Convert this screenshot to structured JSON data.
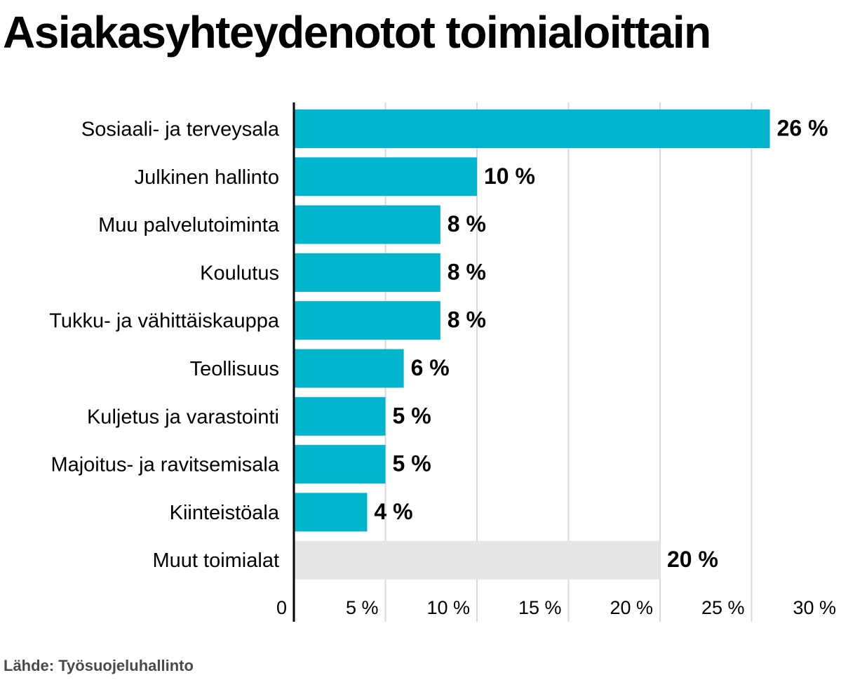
{
  "chart_data": {
    "type": "bar",
    "orientation": "horizontal",
    "title": "Asiakasyhteydenotot toimialoittain",
    "categories": [
      "Sosiaali- ja terveysala",
      "Julkinen hallinto",
      "Muu palvelutoiminta",
      "Koulutus",
      "Tukku- ja vähittäiskauppa",
      "Teollisuus",
      "Kuljetus ja varastointi",
      "Majoitus- ja ravitsemisala",
      "Kiinteistöala",
      "Muut toimialat"
    ],
    "values": [
      26,
      10,
      8,
      8,
      8,
      6,
      5,
      5,
      4,
      20
    ],
    "value_labels": [
      "26 %",
      "10 %",
      "8 %",
      "8 %",
      "8 %",
      "6 %",
      "5 %",
      "5 %",
      "4 %",
      "20 %"
    ],
    "xlim": [
      0,
      30
    ],
    "xticks": [
      0,
      5,
      10,
      15,
      20,
      25,
      30
    ],
    "xtick_labels": [
      "0",
      "5 %",
      "10 %",
      "15 %",
      "20 %",
      "25 %",
      "30 %"
    ],
    "xlabel": "",
    "ylabel": "",
    "grid": true,
    "legend": "none",
    "colors": {
      "bar": "#00b5cc",
      "other_bar": "#e5e5e5",
      "grid": "#d9d9d9",
      "axis": "#000000"
    },
    "highlight_gray_index": 9
  },
  "source": "Lähde: Työsuojeluhallinto"
}
